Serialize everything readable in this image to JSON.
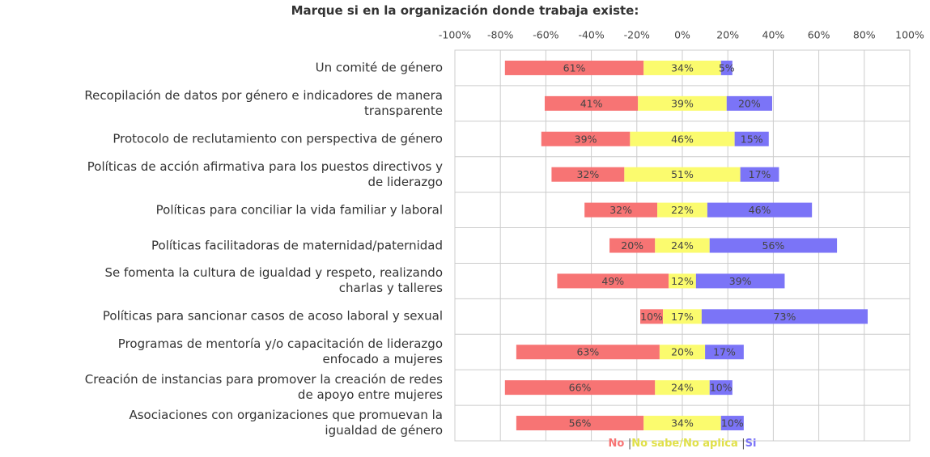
{
  "chart_data": {
    "type": "diverging_bar",
    "title": "Marque si en la organización donde trabaja existe:",
    "categories": [
      "Un comité de género",
      "Recopilación de datos por género e indicadores de manera\ntransparente",
      "Protocolo de reclutamiento con perspectiva de género",
      "Políticas de acción afirmativa para los puestos directivos y\nde liderazgo",
      "Políticas para conciliar la vida familiar y laboral",
      "Políticas facilitadoras de maternidad/paternidad",
      "Se fomenta la cultura de igualdad y respeto, realizando\ncharlas y talleres",
      "Políticas para sancionar casos de acoso laboral y sexual",
      "Programas de mentoría y/o capacitación de liderazgo\nenfocado a mujeres",
      "Creación de instancias para promover la creación de redes\nde apoyo entre mujeres",
      "Asociaciones con organizaciones que promuevan la\nigualdad de género"
    ],
    "series": [
      {
        "name": "No",
        "color": "#f77474",
        "values": [
          61,
          41,
          39,
          32,
          32,
          20,
          49,
          10,
          63,
          66,
          56
        ],
        "value_labels": [
          "61%",
          "41%",
          "39%",
          "32%",
          "32%",
          "20%",
          "49%",
          "10%",
          "63%",
          "66%",
          "56%"
        ]
      },
      {
        "name": "No sabe/No aplica",
        "color": "#fbfb6e",
        "values": [
          34,
          39,
          46,
          51,
          22,
          24,
          12,
          17,
          20,
          24,
          34
        ],
        "value_labels": [
          "34%",
          "39%",
          "46%",
          "51%",
          "22%",
          "24%",
          "12%",
          "17%",
          "20%",
          "24%",
          "34%"
        ]
      },
      {
        "name": "Si",
        "color": "#7b74f7",
        "values": [
          5,
          20,
          15,
          17,
          46,
          56,
          39,
          73,
          17,
          10,
          10
        ],
        "value_labels": [
          "5%",
          "20%",
          "15%",
          "17%",
          "46%",
          "56%",
          "39%",
          "73%",
          "17%",
          "10%",
          "10%"
        ]
      }
    ],
    "xlim": [
      -100,
      100
    ],
    "xticks": [
      {
        "value": -100,
        "label": "-100%"
      },
      {
        "value": -80,
        "label": "-80%"
      },
      {
        "value": -60,
        "label": "-60%"
      },
      {
        "value": -40,
        "label": "-40%"
      },
      {
        "value": -20,
        "label": "-20%"
      },
      {
        "value": 0,
        "label": "0%"
      },
      {
        "value": 20,
        "label": "20%"
      },
      {
        "value": 40,
        "label": "40%"
      },
      {
        "value": 60,
        "label": "60%"
      },
      {
        "value": 80,
        "label": "80%"
      },
      {
        "value": 100,
        "label": "100%"
      }
    ],
    "grid": true
  }
}
